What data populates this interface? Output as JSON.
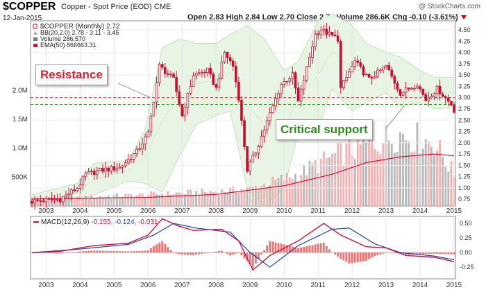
{
  "header": {
    "symbol": "$COPPER",
    "description": "Copper - Spot Price (EOD)",
    "exchange": "CME",
    "date": "12-Jan-2015",
    "brand": "@ StockCharts.com",
    "ohlc": "Open 2.83  High 2.84  Low 2.70  Close 2.72  Volume 286.6K  Chg -0.10 (-3.61%)"
  },
  "legend": {
    "price": "$COPPER (Monthly) 2.72",
    "bb": "BB(20,2.0) 2.78 - 3.11 - 3.45",
    "volume": "Volume 286,570",
    "ema": "EMA(50) 866663.31"
  },
  "macd_legend": {
    "label": "MACD(12,26,9)",
    "v1": "-0.155",
    "v2": "-0.124",
    "v3": "-0.031"
  },
  "annotations": {
    "resistance": "Resistance",
    "support": "Critical support"
  },
  "colors": {
    "up": "#c8102e",
    "down": "#c8102e",
    "bb_fill": "#e8f5e4",
    "bb_line": "#c4e0bd",
    "volume_up": "#f3b0b0",
    "volume_down": "#b8b8b8",
    "ema": "#d0103a",
    "macd": "#d0103a",
    "signal": "#1d3fb3",
    "hist": "#f07070",
    "resistance_line": "#e0202a",
    "support_line": "#2e8b1e"
  },
  "chart_data": {
    "type": "candlestick",
    "interval": "monthly",
    "x_range": [
      "2002-08",
      "2015-01"
    ],
    "x_ticks": [
      "2003",
      "2004",
      "2005",
      "2006",
      "2007",
      "2008",
      "2009",
      "2010",
      "2011",
      "2012",
      "2013",
      "2014",
      "2015"
    ],
    "price_axis": {
      "ylim": [
        0.6,
        4.7
      ],
      "ticks": [
        "4.50",
        "4.25",
        "4.00",
        "3.75",
        "3.50",
        "3.25",
        "3.00",
        "2.75",
        "2.50",
        "2.25",
        "2.00",
        "1.75",
        "1.50",
        "1.25",
        "1.00",
        "0.75"
      ]
    },
    "volume_axis": {
      "ticks": [
        "2.0M",
        "1.5M",
        "1.0M",
        "500K"
      ]
    },
    "resistance_level": 3.0,
    "support_level": 2.85,
    "price_knots": [
      [
        "2002-08",
        0.7
      ],
      [
        "2003-06",
        0.75
      ],
      [
        "2003-12",
        1.0
      ],
      [
        "2004-03",
        1.3
      ],
      [
        "2004-09",
        1.4
      ],
      [
        "2005-03",
        1.45
      ],
      [
        "2005-09",
        1.8
      ],
      [
        "2006-01",
        2.2
      ],
      [
        "2006-05",
        3.7
      ],
      [
        "2006-10",
        3.4
      ],
      [
        "2007-01",
        2.6
      ],
      [
        "2007-05",
        3.5
      ],
      [
        "2007-10",
        3.6
      ],
      [
        "2008-01",
        3.2
      ],
      [
        "2008-04",
        4.0
      ],
      [
        "2008-07",
        3.7
      ],
      [
        "2008-09",
        3.0
      ],
      [
        "2008-12",
        1.4
      ],
      [
        "2009-03",
        1.8
      ],
      [
        "2009-06",
        2.3
      ],
      [
        "2009-12",
        3.3
      ],
      [
        "2010-04",
        3.5
      ],
      [
        "2010-06",
        2.9
      ],
      [
        "2010-12",
        4.4
      ],
      [
        "2011-02",
        4.5
      ],
      [
        "2011-08",
        4.3
      ],
      [
        "2011-09",
        3.2
      ],
      [
        "2012-02",
        3.8
      ],
      [
        "2012-07",
        3.4
      ],
      [
        "2013-01",
        3.7
      ],
      [
        "2013-06",
        3.1
      ],
      [
        "2013-12",
        3.3
      ],
      [
        "2014-03",
        2.95
      ],
      [
        "2014-07",
        3.2
      ],
      [
        "2014-12",
        2.85
      ],
      [
        "2015-01",
        2.72
      ]
    ],
    "bb_upper_knots": [
      [
        "2002-08",
        0.85
      ],
      [
        "2003-12",
        1.1
      ],
      [
        "2004-06",
        1.55
      ],
      [
        "2005-06",
        1.6
      ],
      [
        "2005-12",
        2.3
      ],
      [
        "2006-06",
        4.1
      ],
      [
        "2006-12",
        4.3
      ],
      [
        "2007-06",
        4.2
      ],
      [
        "2008-01",
        4.2
      ],
      [
        "2008-06",
        4.4
      ],
      [
        "2008-12",
        4.6
      ],
      [
        "2009-06",
        4.3
      ],
      [
        "2010-01",
        3.6
      ],
      [
        "2010-06",
        3.8
      ],
      [
        "2011-01",
        4.7
      ],
      [
        "2011-06",
        4.85
      ],
      [
        "2012-01",
        4.6
      ],
      [
        "2012-06",
        4.2
      ],
      [
        "2013-01",
        4.0
      ],
      [
        "2013-06",
        3.9
      ],
      [
        "2014-01",
        3.6
      ],
      [
        "2014-06",
        3.45
      ],
      [
        "2015-01",
        3.45
      ]
    ],
    "bb_lower_knots": [
      [
        "2002-08",
        0.62
      ],
      [
        "2003-12",
        0.7
      ],
      [
        "2004-06",
        0.85
      ],
      [
        "2005-06",
        1.15
      ],
      [
        "2005-12",
        1.1
      ],
      [
        "2006-06",
        0.9
      ],
      [
        "2006-12",
        1.7
      ],
      [
        "2007-06",
        2.4
      ],
      [
        "2008-01",
        2.6
      ],
      [
        "2008-06",
        2.7
      ],
      [
        "2008-12",
        1.0
      ],
      [
        "2009-06",
        0.6
      ],
      [
        "2010-01",
        1.0
      ],
      [
        "2010-06",
        2.2
      ],
      [
        "2011-01",
        2.3
      ],
      [
        "2011-06",
        3.2
      ],
      [
        "2012-01",
        2.7
      ],
      [
        "2012-06",
        2.9
      ],
      [
        "2013-01",
        3.1
      ],
      [
        "2013-06",
        2.8
      ],
      [
        "2014-01",
        2.9
      ],
      [
        "2014-06",
        2.75
      ],
      [
        "2015-01",
        2.78
      ]
    ],
    "volume_knots": [
      [
        "2002-08",
        0.1
      ],
      [
        "2004-01",
        0.15
      ],
      [
        "2006-01",
        0.2
      ],
      [
        "2008-01",
        0.25
      ],
      [
        "2009-01",
        0.3
      ],
      [
        "2010-06",
        0.55
      ],
      [
        "2011-06",
        0.85
      ],
      [
        "2012-06",
        1.05
      ],
      [
        "2013-06",
        1.25
      ],
      [
        "2014-06",
        1.1
      ],
      [
        "2015-01",
        0.55
      ]
    ],
    "ema_knots": [
      [
        "2002-08",
        0.12
      ],
      [
        "2006-01",
        0.15
      ],
      [
        "2008-01",
        0.2
      ],
      [
        "2010-01",
        0.35
      ],
      [
        "2011-06",
        0.55
      ],
      [
        "2012-06",
        0.75
      ],
      [
        "2013-06",
        0.85
      ],
      [
        "2014-06",
        0.9
      ],
      [
        "2015-01",
        0.87
      ]
    ],
    "macd_axis": {
      "ylim": [
        -0.45,
        0.62
      ],
      "ticks": [
        "0.50",
        "0.25",
        "0.00",
        "-0.25"
      ]
    },
    "macd_knots": [
      [
        "2002-08",
        0.0
      ],
      [
        "2003-06",
        0.02
      ],
      [
        "2004-01",
        0.08
      ],
      [
        "2004-06",
        0.12
      ],
      [
        "2005-06",
        0.16
      ],
      [
        "2006-01",
        0.3
      ],
      [
        "2006-06",
        0.58
      ],
      [
        "2006-12",
        0.45
      ],
      [
        "2007-05",
        0.38
      ],
      [
        "2008-03",
        0.4
      ],
      [
        "2008-09",
        0.2
      ],
      [
        "2009-02",
        -0.3
      ],
      [
        "2009-08",
        -0.05
      ],
      [
        "2010-06",
        0.2
      ],
      [
        "2011-03",
        0.5
      ],
      [
        "2011-09",
        0.3
      ],
      [
        "2012-06",
        0.1
      ],
      [
        "2013-01",
        0.08
      ],
      [
        "2013-08",
        -0.05
      ],
      [
        "2014-06",
        -0.08
      ],
      [
        "2015-01",
        -0.155
      ]
    ],
    "signal_knots": [
      [
        "2002-08",
        0.0
      ],
      [
        "2004-01",
        0.06
      ],
      [
        "2005-06",
        0.14
      ],
      [
        "2006-03",
        0.3
      ],
      [
        "2006-10",
        0.5
      ],
      [
        "2007-06",
        0.42
      ],
      [
        "2008-06",
        0.35
      ],
      [
        "2009-01",
        0.0
      ],
      [
        "2009-08",
        -0.25
      ],
      [
        "2010-06",
        0.12
      ],
      [
        "2011-06",
        0.4
      ],
      [
        "2011-12",
        0.42
      ],
      [
        "2012-09",
        0.15
      ],
      [
        "2013-06",
        0.0
      ],
      [
        "2014-06",
        -0.06
      ],
      [
        "2015-01",
        -0.124
      ]
    ]
  }
}
